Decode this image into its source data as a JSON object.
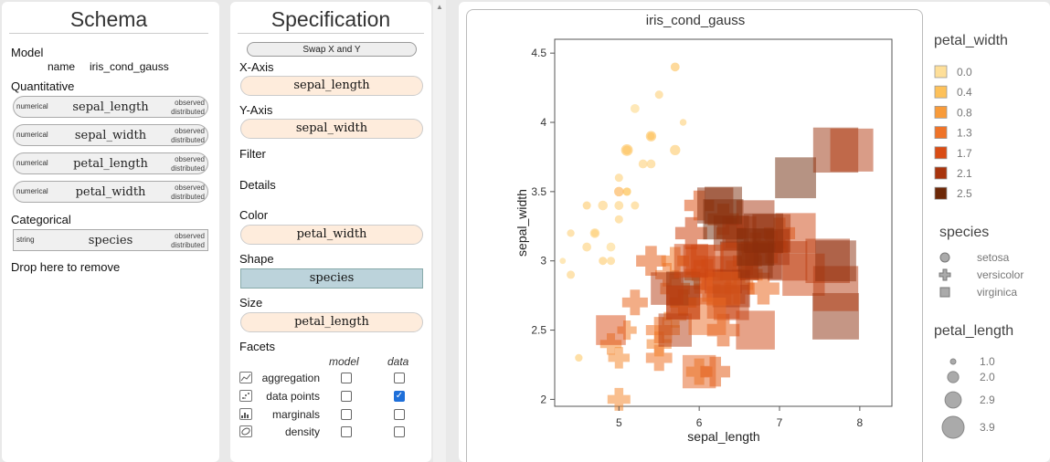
{
  "schema": {
    "title": "Schema",
    "model_label": "Model",
    "model_name_key": "name",
    "model_name": "iris_cond_gauss",
    "quantitative_label": "Quantitative",
    "quantitative": [
      {
        "type": "numerical",
        "name": "sepal_length",
        "status1": "observed",
        "status2": "distributed"
      },
      {
        "type": "numerical",
        "name": "sepal_width",
        "status1": "observed",
        "status2": "distributed"
      },
      {
        "type": "numerical",
        "name": "petal_length",
        "status1": "observed",
        "status2": "distributed"
      },
      {
        "type": "numerical",
        "name": "petal_width",
        "status1": "observed",
        "status2": "distributed"
      }
    ],
    "categorical_label": "Categorical",
    "categorical": [
      {
        "type": "string",
        "name": "species",
        "status1": "observed",
        "status2": "distributed"
      }
    ],
    "drop_label": "Drop here to remove"
  },
  "spec": {
    "title": "Specification",
    "swap_label": "Swap X and Y",
    "x_label": "X-Axis",
    "x_value": "sepal_length",
    "y_label": "Y-Axis",
    "y_value": "sepal_width",
    "filter_label": "Filter",
    "details_label": "Details",
    "color_label": "Color",
    "color_value": "petal_width",
    "shape_label": "Shape",
    "shape_value": "species",
    "size_label": "Size",
    "size_value": "petal_length",
    "facets_label": "Facets",
    "facet_col_model": "model",
    "facet_col_data": "data",
    "facets": [
      {
        "label": "aggregation",
        "icon": "line-chart-icon",
        "model": false,
        "data": false
      },
      {
        "label": "data points",
        "icon": "scatter-icon",
        "model": false,
        "data": true
      },
      {
        "label": "marginals",
        "icon": "marginals-icon",
        "model": false,
        "data": false
      },
      {
        "label": "density",
        "icon": "density-icon",
        "model": false,
        "data": false
      }
    ]
  },
  "view": {
    "chart_title": "iris_cond_gauss",
    "legend_color_title": "petal_width",
    "legend_color": [
      {
        "label": "0.0",
        "color": "#fedf99"
      },
      {
        "label": "0.4",
        "color": "#fdc15a"
      },
      {
        "label": "0.8",
        "color": "#f89b3a"
      },
      {
        "label": "1.3",
        "color": "#ef7328"
      },
      {
        "label": "1.7",
        "color": "#d94c14"
      },
      {
        "label": "2.1",
        "color": "#a8340d"
      },
      {
        "label": "2.5",
        "color": "#6d2808"
      }
    ],
    "legend_shape_title": "species",
    "legend_shape": [
      {
        "label": "setosa",
        "shape": "circle"
      },
      {
        "label": "versicolor",
        "shape": "cross"
      },
      {
        "label": "virginica",
        "shape": "square"
      }
    ],
    "legend_size_title": "petal_length",
    "legend_size": [
      {
        "label": "1.0",
        "value": 1.0
      },
      {
        "label": "2.0",
        "value": 2.0
      },
      {
        "label": "2.9",
        "value": 2.9
      },
      {
        "label": "3.9",
        "value": 3.9
      }
    ]
  },
  "chart_data": {
    "type": "scatter",
    "title": "iris_cond_gauss",
    "xlabel": "sepal_length",
    "ylabel": "sepal_width",
    "xlim": [
      4.2,
      8.4
    ],
    "ylim": [
      1.95,
      4.6
    ],
    "xticks": [
      "5",
      "6",
      "7",
      "8"
    ],
    "yticks": [
      "2",
      "2.5",
      "3",
      "3.5",
      "4",
      "4.5"
    ],
    "grid": false,
    "legend": "right",
    "points": [
      {
        "x": 5.1,
        "y": 3.5,
        "species": "setosa",
        "pw": 0.2,
        "pl": 1.4
      },
      {
        "x": 4.9,
        "y": 3.0,
        "species": "setosa",
        "pw": 0.2,
        "pl": 1.4
      },
      {
        "x": 4.7,
        "y": 3.2,
        "species": "setosa",
        "pw": 0.2,
        "pl": 1.3
      },
      {
        "x": 4.6,
        "y": 3.1,
        "species": "setosa",
        "pw": 0.2,
        "pl": 1.5
      },
      {
        "x": 5.0,
        "y": 3.6,
        "species": "setosa",
        "pw": 0.2,
        "pl": 1.4
      },
      {
        "x": 5.4,
        "y": 3.9,
        "species": "setosa",
        "pw": 0.4,
        "pl": 1.7
      },
      {
        "x": 4.6,
        "y": 3.4,
        "species": "setosa",
        "pw": 0.3,
        "pl": 1.4
      },
      {
        "x": 5.0,
        "y": 3.4,
        "species": "setosa",
        "pw": 0.2,
        "pl": 1.5
      },
      {
        "x": 4.4,
        "y": 2.9,
        "species": "setosa",
        "pw": 0.2,
        "pl": 1.4
      },
      {
        "x": 4.9,
        "y": 3.1,
        "species": "setosa",
        "pw": 0.1,
        "pl": 1.5
      },
      {
        "x": 5.4,
        "y": 3.7,
        "species": "setosa",
        "pw": 0.2,
        "pl": 1.5
      },
      {
        "x": 4.8,
        "y": 3.4,
        "species": "setosa",
        "pw": 0.2,
        "pl": 1.6
      },
      {
        "x": 4.3,
        "y": 3.0,
        "species": "setosa",
        "pw": 0.1,
        "pl": 1.1
      },
      {
        "x": 5.8,
        "y": 4.0,
        "species": "setosa",
        "pw": 0.2,
        "pl": 1.2
      },
      {
        "x": 5.7,
        "y": 4.4,
        "species": "setosa",
        "pw": 0.4,
        "pl": 1.5
      },
      {
        "x": 5.4,
        "y": 3.9,
        "species": "setosa",
        "pw": 0.4,
        "pl": 1.3
      },
      {
        "x": 5.1,
        "y": 3.5,
        "species": "setosa",
        "pw": 0.3,
        "pl": 1.4
      },
      {
        "x": 5.7,
        "y": 3.8,
        "species": "setosa",
        "pw": 0.3,
        "pl": 1.7
      },
      {
        "x": 5.1,
        "y": 3.8,
        "species": "setosa",
        "pw": 0.3,
        "pl": 1.5
      },
      {
        "x": 5.2,
        "y": 4.1,
        "species": "setosa",
        "pw": 0.1,
        "pl": 1.5
      },
      {
        "x": 5.5,
        "y": 4.2,
        "species": "setosa",
        "pw": 0.2,
        "pl": 1.4
      },
      {
        "x": 4.5,
        "y": 2.3,
        "species": "setosa",
        "pw": 0.3,
        "pl": 1.3
      },
      {
        "x": 5.1,
        "y": 3.8,
        "species": "setosa",
        "pw": 0.4,
        "pl": 1.9
      },
      {
        "x": 4.8,
        "y": 3.0,
        "species": "setosa",
        "pw": 0.3,
        "pl": 1.4
      },
      {
        "x": 5.0,
        "y": 3.3,
        "species": "setosa",
        "pw": 0.2,
        "pl": 1.4
      },
      {
        "x": 5.3,
        "y": 3.7,
        "species": "setosa",
        "pw": 0.2,
        "pl": 1.5
      },
      {
        "x": 4.4,
        "y": 3.2,
        "species": "setosa",
        "pw": 0.2,
        "pl": 1.3
      },
      {
        "x": 5.0,
        "y": 3.5,
        "species": "setosa",
        "pw": 0.6,
        "pl": 1.6
      },
      {
        "x": 4.7,
        "y": 3.2,
        "species": "setosa",
        "pw": 0.2,
        "pl": 1.6
      },
      {
        "x": 5.2,
        "y": 3.4,
        "species": "setosa",
        "pw": 0.2,
        "pl": 1.4
      },
      {
        "x": 7.0,
        "y": 3.2,
        "species": "versicolor",
        "pw": 1.4,
        "pl": 4.7
      },
      {
        "x": 6.4,
        "y": 3.2,
        "species": "versicolor",
        "pw": 1.5,
        "pl": 4.5
      },
      {
        "x": 6.9,
        "y": 3.1,
        "species": "versicolor",
        "pw": 1.5,
        "pl": 4.9
      },
      {
        "x": 5.5,
        "y": 2.3,
        "species": "versicolor",
        "pw": 1.3,
        "pl": 4.0
      },
      {
        "x": 6.5,
        "y": 2.8,
        "species": "versicolor",
        "pw": 1.5,
        "pl": 4.6
      },
      {
        "x": 5.7,
        "y": 2.8,
        "species": "versicolor",
        "pw": 1.3,
        "pl": 4.5
      },
      {
        "x": 6.3,
        "y": 3.3,
        "species": "versicolor",
        "pw": 1.6,
        "pl": 4.7
      },
      {
        "x": 4.9,
        "y": 2.4,
        "species": "versicolor",
        "pw": 1.0,
        "pl": 3.3
      },
      {
        "x": 6.6,
        "y": 2.9,
        "species": "versicolor",
        "pw": 1.3,
        "pl": 4.6
      },
      {
        "x": 5.2,
        "y": 2.7,
        "species": "versicolor",
        "pw": 1.4,
        "pl": 3.9
      },
      {
        "x": 5.0,
        "y": 2.0,
        "species": "versicolor",
        "pw": 1.0,
        "pl": 3.5
      },
      {
        "x": 5.9,
        "y": 3.0,
        "species": "versicolor",
        "pw": 1.5,
        "pl": 4.2
      },
      {
        "x": 6.0,
        "y": 2.2,
        "species": "versicolor",
        "pw": 1.0,
        "pl": 4.0
      },
      {
        "x": 6.1,
        "y": 2.9,
        "species": "versicolor",
        "pw": 1.4,
        "pl": 4.7
      },
      {
        "x": 5.6,
        "y": 2.9,
        "species": "versicolor",
        "pw": 1.3,
        "pl": 3.6
      },
      {
        "x": 6.7,
        "y": 3.1,
        "species": "versicolor",
        "pw": 1.4,
        "pl": 4.4
      },
      {
        "x": 5.8,
        "y": 2.7,
        "species": "versicolor",
        "pw": 1.0,
        "pl": 4.1
      },
      {
        "x": 6.2,
        "y": 2.2,
        "species": "versicolor",
        "pw": 1.5,
        "pl": 4.5
      },
      {
        "x": 5.6,
        "y": 2.5,
        "species": "versicolor",
        "pw": 1.1,
        "pl": 3.9
      },
      {
        "x": 5.9,
        "y": 3.2,
        "species": "versicolor",
        "pw": 1.8,
        "pl": 4.8
      },
      {
        "x": 6.1,
        "y": 2.8,
        "species": "versicolor",
        "pw": 1.3,
        "pl": 4.0
      },
      {
        "x": 6.3,
        "y": 2.5,
        "species": "versicolor",
        "pw": 1.5,
        "pl": 4.9
      },
      {
        "x": 6.4,
        "y": 2.9,
        "species": "versicolor",
        "pw": 1.3,
        "pl": 4.3
      },
      {
        "x": 6.6,
        "y": 3.0,
        "species": "versicolor",
        "pw": 1.4,
        "pl": 4.4
      },
      {
        "x": 6.8,
        "y": 2.8,
        "species": "versicolor",
        "pw": 1.4,
        "pl": 4.8
      },
      {
        "x": 6.0,
        "y": 2.9,
        "species": "versicolor",
        "pw": 1.5,
        "pl": 4.5
      },
      {
        "x": 5.7,
        "y": 2.6,
        "species": "versicolor",
        "pw": 1.0,
        "pl": 3.5
      },
      {
        "x": 5.5,
        "y": 2.4,
        "species": "versicolor",
        "pw": 1.1,
        "pl": 3.8
      },
      {
        "x": 5.8,
        "y": 2.7,
        "species": "versicolor",
        "pw": 1.2,
        "pl": 3.9
      },
      {
        "x": 5.4,
        "y": 3.0,
        "species": "versicolor",
        "pw": 1.5,
        "pl": 4.5
      },
      {
        "x": 6.0,
        "y": 3.4,
        "species": "versicolor",
        "pw": 1.6,
        "pl": 4.5
      },
      {
        "x": 5.5,
        "y": 2.5,
        "species": "versicolor",
        "pw": 1.3,
        "pl": 4.0
      },
      {
        "x": 5.0,
        "y": 2.3,
        "species": "versicolor",
        "pw": 1.0,
        "pl": 3.3
      },
      {
        "x": 5.1,
        "y": 2.5,
        "species": "versicolor",
        "pw": 1.1,
        "pl": 3.0
      },
      {
        "x": 5.7,
        "y": 3.0,
        "species": "versicolor",
        "pw": 1.2,
        "pl": 4.2
      },
      {
        "x": 6.3,
        "y": 3.3,
        "species": "virginica",
        "pw": 2.5,
        "pl": 6.0
      },
      {
        "x": 5.8,
        "y": 2.7,
        "species": "virginica",
        "pw": 1.9,
        "pl": 5.1
      },
      {
        "x": 7.1,
        "y": 3.0,
        "species": "virginica",
        "pw": 2.1,
        "pl": 5.9
      },
      {
        "x": 6.3,
        "y": 2.9,
        "species": "virginica",
        "pw": 1.8,
        "pl": 5.6
      },
      {
        "x": 6.5,
        "y": 3.0,
        "species": "virginica",
        "pw": 2.2,
        "pl": 5.8
      },
      {
        "x": 7.6,
        "y": 3.0,
        "species": "virginica",
        "pw": 2.1,
        "pl": 6.6
      },
      {
        "x": 4.9,
        "y": 2.5,
        "species": "virginica",
        "pw": 1.7,
        "pl": 4.5
      },
      {
        "x": 7.3,
        "y": 2.9,
        "species": "virginica",
        "pw": 1.8,
        "pl": 6.3
      },
      {
        "x": 6.7,
        "y": 2.5,
        "species": "virginica",
        "pw": 1.8,
        "pl": 5.8
      },
      {
        "x": 7.2,
        "y": 3.6,
        "species": "virginica",
        "pw": 2.5,
        "pl": 6.1
      },
      {
        "x": 6.5,
        "y": 3.2,
        "species": "virginica",
        "pw": 2.0,
        "pl": 5.1
      },
      {
        "x": 6.4,
        "y": 2.7,
        "species": "virginica",
        "pw": 1.9,
        "pl": 5.3
      },
      {
        "x": 6.8,
        "y": 3.0,
        "species": "virginica",
        "pw": 2.1,
        "pl": 5.5
      },
      {
        "x": 5.7,
        "y": 2.5,
        "species": "virginica",
        "pw": 2.0,
        "pl": 5.0
      },
      {
        "x": 5.8,
        "y": 2.8,
        "species": "virginica",
        "pw": 2.4,
        "pl": 5.1
      },
      {
        "x": 6.4,
        "y": 3.2,
        "species": "virginica",
        "pw": 2.3,
        "pl": 5.3
      },
      {
        "x": 6.5,
        "y": 3.0,
        "species": "virginica",
        "pw": 1.8,
        "pl": 5.5
      },
      {
        "x": 7.7,
        "y": 3.8,
        "species": "virginica",
        "pw": 2.2,
        "pl": 6.7
      },
      {
        "x": 7.7,
        "y": 2.6,
        "species": "virginica",
        "pw": 2.3,
        "pl": 6.9
      },
      {
        "x": 6.0,
        "y": 2.2,
        "species": "virginica",
        "pw": 1.5,
        "pl": 5.0
      },
      {
        "x": 6.9,
        "y": 3.2,
        "species": "virginica",
        "pw": 2.3,
        "pl": 5.7
      },
      {
        "x": 5.6,
        "y": 2.8,
        "species": "virginica",
        "pw": 2.0,
        "pl": 4.9
      },
      {
        "x": 7.7,
        "y": 2.8,
        "species": "virginica",
        "pw": 2.0,
        "pl": 6.7
      },
      {
        "x": 6.3,
        "y": 2.7,
        "species": "virginica",
        "pw": 1.8,
        "pl": 4.9
      },
      {
        "x": 6.7,
        "y": 3.3,
        "species": "virginica",
        "pw": 2.1,
        "pl": 5.7
      },
      {
        "x": 7.2,
        "y": 3.2,
        "species": "virginica",
        "pw": 1.8,
        "pl": 6.0
      },
      {
        "x": 6.2,
        "y": 2.8,
        "species": "virginica",
        "pw": 1.8,
        "pl": 4.8
      },
      {
        "x": 6.1,
        "y": 3.0,
        "species": "virginica",
        "pw": 1.8,
        "pl": 4.9
      },
      {
        "x": 6.4,
        "y": 2.8,
        "species": "virginica",
        "pw": 2.1,
        "pl": 5.6
      },
      {
        "x": 7.9,
        "y": 3.8,
        "species": "virginica",
        "pw": 2.0,
        "pl": 6.4
      },
      {
        "x": 6.3,
        "y": 2.8,
        "species": "virginica",
        "pw": 1.5,
        "pl": 5.1
      },
      {
        "x": 6.1,
        "y": 2.6,
        "species": "virginica",
        "pw": 1.4,
        "pl": 5.6
      },
      {
        "x": 7.7,
        "y": 3.0,
        "species": "virginica",
        "pw": 2.3,
        "pl": 6.1
      },
      {
        "x": 6.3,
        "y": 3.4,
        "species": "virginica",
        "pw": 2.4,
        "pl": 5.6
      },
      {
        "x": 6.0,
        "y": 3.0,
        "species": "virginica",
        "pw": 1.8,
        "pl": 4.8
      },
      {
        "x": 6.9,
        "y": 3.1,
        "species": "virginica",
        "pw": 2.1,
        "pl": 5.4
      },
      {
        "x": 6.7,
        "y": 3.1,
        "species": "virginica",
        "pw": 2.4,
        "pl": 5.6
      },
      {
        "x": 5.8,
        "y": 2.7,
        "species": "virginica",
        "pw": 1.9,
        "pl": 5.1
      },
      {
        "x": 6.8,
        "y": 3.2,
        "species": "virginica",
        "pw": 2.3,
        "pl": 5.9
      },
      {
        "x": 6.7,
        "y": 3.0,
        "species": "virginica",
        "pw": 2.3,
        "pl": 5.2
      },
      {
        "x": 6.2,
        "y": 3.4,
        "species": "virginica",
        "pw": 2.3,
        "pl": 5.4
      },
      {
        "x": 5.9,
        "y": 3.0,
        "species": "virginica",
        "pw": 1.8,
        "pl": 5.1
      }
    ]
  }
}
